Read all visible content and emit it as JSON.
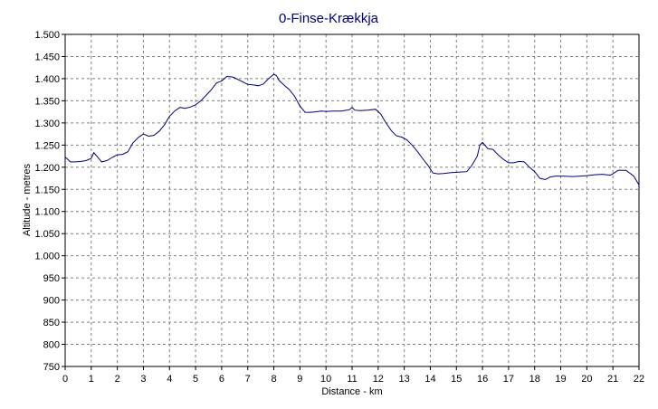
{
  "chart_data": {
    "type": "line",
    "title": "0-Finse-Krækkja",
    "xlabel": "Distance - km",
    "ylabel": "Altitude - metres",
    "xlim": [
      0,
      22
    ],
    "ylim": [
      750,
      1500
    ],
    "x_ticks": [
      "0",
      "1",
      "2",
      "3",
      "4",
      "5",
      "6",
      "7",
      "8",
      "9",
      "10",
      "11",
      "12",
      "13",
      "14",
      "15",
      "16",
      "17",
      "18",
      "19",
      "20",
      "21",
      "22"
    ],
    "y_ticks": [
      "750",
      "800",
      "850",
      "900",
      "950",
      "1.000",
      "1.050",
      "1.100",
      "1.150",
      "1.200",
      "1.250",
      "1.300",
      "1.350",
      "1.400",
      "1.450",
      "1.500"
    ],
    "y_tick_values": [
      750,
      800,
      850,
      900,
      950,
      1000,
      1050,
      1100,
      1150,
      1200,
      1250,
      1300,
      1350,
      1400,
      1450,
      1500
    ],
    "grid": true,
    "colors": {
      "line": "#000080",
      "title": "#000080",
      "grid": "#808080"
    },
    "series": [
      {
        "x": [
          0,
          0.2,
          0.4,
          0.6,
          0.8,
          1.0,
          1.1,
          1.2,
          1.4,
          1.6,
          1.8,
          2.0,
          2.2,
          2.4,
          2.6,
          2.8,
          3.0,
          3.2,
          3.4,
          3.6,
          3.8,
          4.0,
          4.2,
          4.4,
          4.6,
          4.8,
          5.0,
          5.2,
          5.4,
          5.6,
          5.8,
          6.0,
          6.2,
          6.4,
          6.5,
          6.7,
          6.9,
          7.0,
          7.2,
          7.4,
          7.6,
          7.8,
          8.0,
          8.1,
          8.2,
          8.4,
          8.6,
          8.8,
          9.0,
          9.2,
          9.4,
          9.6,
          9.8,
          10.0,
          10.3,
          10.6,
          10.9,
          11.0,
          11.1,
          11.3,
          11.6,
          11.9,
          12.1,
          12.3,
          12.5,
          12.7,
          12.9,
          13.1,
          13.3,
          13.5,
          13.7,
          13.9,
          14.1,
          14.3,
          14.5,
          14.8,
          15.1,
          15.4,
          15.6,
          15.8,
          15.9,
          16.0,
          16.2,
          16.4,
          16.6,
          16.8,
          17.0,
          17.2,
          17.4,
          17.6,
          17.8,
          18.0,
          18.2,
          18.4,
          18.6,
          18.8,
          19.0,
          19.5,
          20.0,
          20.3,
          20.6,
          20.9,
          21.0,
          21.2,
          21.5,
          21.8,
          22.0
        ],
        "y": [
          1223,
          1212,
          1212,
          1213,
          1215,
          1220,
          1233,
          1226,
          1212,
          1215,
          1222,
          1228,
          1229,
          1235,
          1255,
          1267,
          1275,
          1270,
          1272,
          1281,
          1295,
          1315,
          1327,
          1335,
          1333,
          1336,
          1341,
          1350,
          1362,
          1375,
          1390,
          1395,
          1405,
          1404,
          1402,
          1396,
          1390,
          1387,
          1386,
          1384,
          1388,
          1400,
          1410,
          1407,
          1396,
          1385,
          1375,
          1360,
          1338,
          1324,
          1324,
          1325,
          1327,
          1326,
          1327,
          1327,
          1330,
          1335,
          1329,
          1328,
          1329,
          1331,
          1320,
          1300,
          1283,
          1271,
          1268,
          1262,
          1250,
          1236,
          1220,
          1205,
          1187,
          1185,
          1186,
          1188,
          1189,
          1190,
          1205,
          1225,
          1250,
          1256,
          1242,
          1240,
          1228,
          1218,
          1210,
          1210,
          1213,
          1212,
          1200,
          1190,
          1175,
          1172,
          1178,
          1180,
          1180,
          1179,
          1181,
          1183,
          1184,
          1182,
          1185,
          1193,
          1193,
          1180,
          1160
        ]
      }
    ]
  }
}
